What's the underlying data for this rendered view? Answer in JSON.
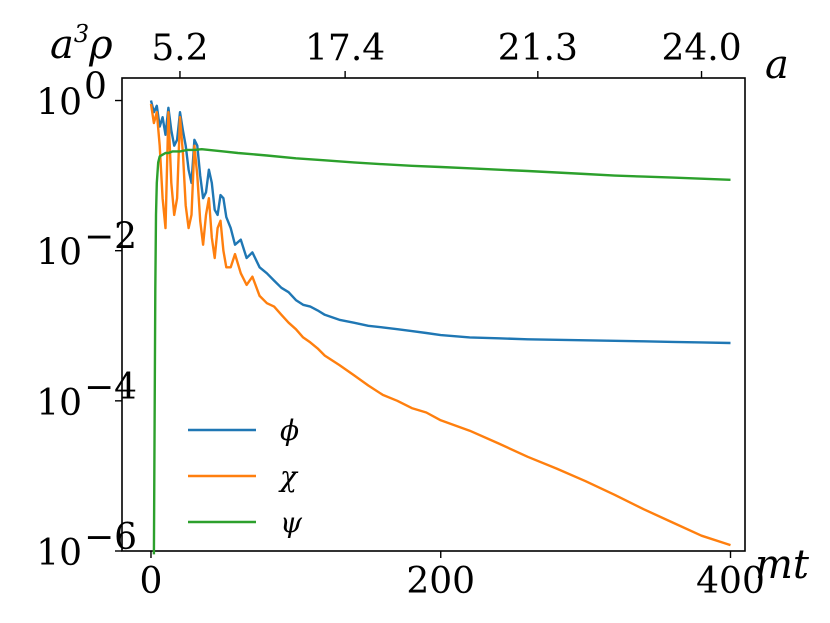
{
  "chart_data": {
    "type": "line",
    "ylabel_main": "a",
    "ylabel_sup": "3",
    "ylabel_tail": "ρ",
    "xlabel": "mt",
    "top_xlabel": "a",
    "xlim": [
      -20,
      410
    ],
    "ylim_log10": [
      -6,
      0.3
    ],
    "y_scale": "log",
    "grid": false,
    "legend_placement": "lower-left",
    "x_ticks": [
      {
        "value": 0,
        "label": "0"
      },
      {
        "value": 200,
        "label": "200"
      },
      {
        "value": 400,
        "label": "400"
      }
    ],
    "y_ticks": [
      {
        "value": 0,
        "base": "10",
        "exp": "0"
      },
      {
        "value": -2,
        "base": "10",
        "exp": "−2"
      },
      {
        "value": -4,
        "base": "10",
        "exp": "−4"
      },
      {
        "value": -6,
        "base": "10",
        "exp": "−6"
      }
    ],
    "top_ticks": [
      {
        "value": 20,
        "label": "5.2"
      },
      {
        "value": 134,
        "label": "17.4"
      },
      {
        "value": 267,
        "label": "21.3"
      },
      {
        "value": 380,
        "label": "24.0"
      }
    ],
    "series": [
      {
        "name": "ϕ",
        "color": "#1f77b4",
        "x": [
          0,
          2,
          4,
          6,
          8,
          10,
          12,
          14,
          16,
          18,
          20,
          22,
          24,
          26,
          28,
          30,
          32,
          34,
          36,
          38,
          40,
          42,
          44,
          46,
          48,
          50,
          52,
          55,
          58,
          62,
          66,
          70,
          75,
          80,
          85,
          90,
          95,
          100,
          105,
          110,
          115,
          120,
          130,
          140,
          150,
          160,
          170,
          180,
          190,
          200,
          220,
          240,
          260,
          280,
          300,
          320,
          340,
          360,
          380,
          400
        ],
        "y": [
          1.0,
          0.7,
          0.85,
          0.45,
          0.6,
          0.35,
          0.8,
          0.4,
          0.25,
          0.3,
          0.7,
          0.4,
          0.25,
          0.12,
          0.08,
          0.3,
          0.25,
          0.1,
          0.05,
          0.06,
          0.12,
          0.08,
          0.035,
          0.03,
          0.055,
          0.05,
          0.028,
          0.02,
          0.012,
          0.014,
          0.008,
          0.0095,
          0.006,
          0.005,
          0.004,
          0.0032,
          0.0028,
          0.0022,
          0.0019,
          0.0018,
          0.0016,
          0.0014,
          0.0012,
          0.0011,
          0.001,
          0.00095,
          0.0009,
          0.00085,
          0.0008,
          0.00075,
          0.0007,
          0.00068,
          0.00066,
          0.00065,
          0.00064,
          0.00063,
          0.00062,
          0.00061,
          0.0006,
          0.00059
        ]
      },
      {
        "name": "χ",
        "color": "#ff7f0e",
        "x": [
          0,
          2,
          4,
          6,
          8,
          10,
          12,
          14,
          16,
          18,
          20,
          22,
          24,
          26,
          28,
          30,
          32,
          34,
          36,
          38,
          40,
          42,
          44,
          46,
          48,
          50,
          52,
          55,
          58,
          62,
          66,
          70,
          75,
          80,
          85,
          90,
          95,
          100,
          105,
          110,
          115,
          120,
          130,
          140,
          150,
          160,
          170,
          180,
          190,
          200,
          220,
          240,
          260,
          280,
          300,
          320,
          340,
          360,
          380,
          400
        ],
        "y": [
          0.9,
          0.5,
          0.7,
          0.25,
          0.05,
          0.02,
          0.7,
          0.08,
          0.03,
          0.05,
          0.6,
          0.2,
          0.04,
          0.02,
          0.03,
          0.25,
          0.1,
          0.025,
          0.012,
          0.03,
          0.05,
          0.015,
          0.008,
          0.02,
          0.025,
          0.01,
          0.006,
          0.006,
          0.009,
          0.005,
          0.0035,
          0.0045,
          0.0025,
          0.002,
          0.0018,
          0.0014,
          0.0011,
          0.0009,
          0.0007,
          0.0006,
          0.0005,
          0.0004,
          0.0003,
          0.00022,
          0.00016,
          0.00012,
          0.0001,
          8e-05,
          7e-05,
          5.5e-05,
          4e-05,
          2.7e-05,
          1.8e-05,
          1.25e-05,
          8.5e-06,
          5.6e-06,
          3.6e-06,
          2.4e-06,
          1.6e-06,
          1.2e-06
        ]
      },
      {
        "name": "ψ",
        "color": "#2ca02c",
        "x": [
          2,
          2.5,
          3,
          3.5,
          4,
          5,
          6,
          8,
          10,
          12,
          15,
          20,
          25,
          30,
          35,
          40,
          50,
          60,
          80,
          100,
          120,
          140,
          160,
          180,
          200,
          220,
          240,
          260,
          280,
          300,
          320,
          340,
          360,
          380,
          400
        ],
        "y": [
          9e-07,
          5e-05,
          0.003,
          0.03,
          0.08,
          0.15,
          0.18,
          0.19,
          0.2,
          0.2,
          0.21,
          0.21,
          0.22,
          0.22,
          0.225,
          0.22,
          0.21,
          0.2,
          0.185,
          0.17,
          0.16,
          0.15,
          0.142,
          0.135,
          0.13,
          0.125,
          0.12,
          0.115,
          0.11,
          0.105,
          0.1,
          0.097,
          0.094,
          0.091,
          0.088
        ]
      }
    ]
  }
}
